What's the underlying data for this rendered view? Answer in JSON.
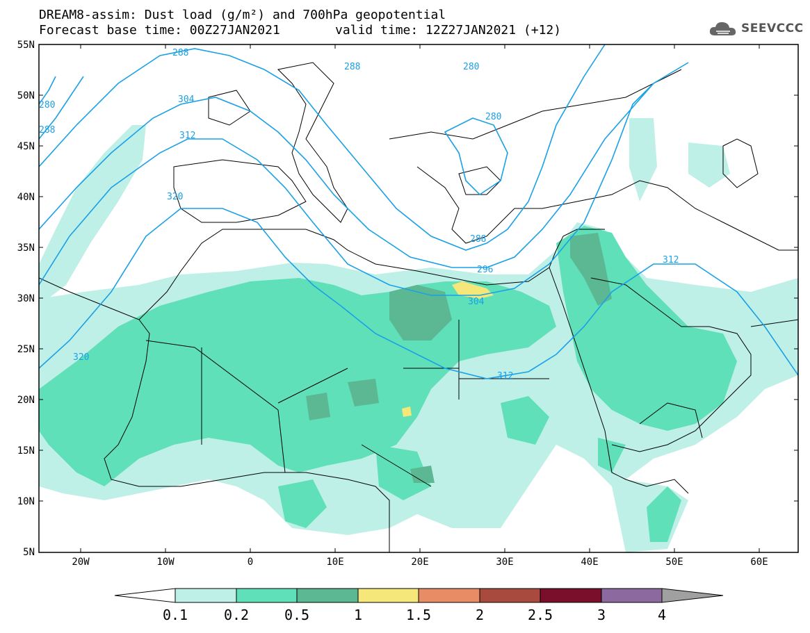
{
  "header": {
    "title_line1": "DREAM8-assim: Dust load (g/m²) and 700hPa geopotential",
    "base_time": "Forecast base time: 00Z27JAN2021",
    "valid_time": "valid time: 12Z27JAN2021 (+12)"
  },
  "logo": {
    "text": "SEEVCCC",
    "icon": "cloud-icon"
  },
  "map": {
    "lat_labels": [
      "55N",
      "50N",
      "45N",
      "40N",
      "35N",
      "30N",
      "25N",
      "20N",
      "15N",
      "10N",
      "5N"
    ],
    "lon_labels": [
      "20W",
      "10W",
      "0",
      "10E",
      "20E",
      "30E",
      "40E",
      "50E",
      "60E"
    ],
    "contour_labels": [
      "288",
      "304",
      "312",
      "320",
      "280",
      "288",
      "280",
      "280",
      "288",
      "296",
      "304",
      "312",
      "312",
      "320",
      "288"
    ]
  },
  "legend": {
    "ticks": [
      "0.1",
      "0.2",
      "0.5",
      "1",
      "1.5",
      "2",
      "2.5",
      "3",
      "4"
    ],
    "colors": [
      "#ffffff",
      "#bff0e8",
      "#5fe0b8",
      "#5bb893",
      "#f5e77a",
      "#e88c66",
      "#a84b3e",
      "#7a0f2c",
      "#8c6aa0",
      "#a0a0a0"
    ]
  }
}
